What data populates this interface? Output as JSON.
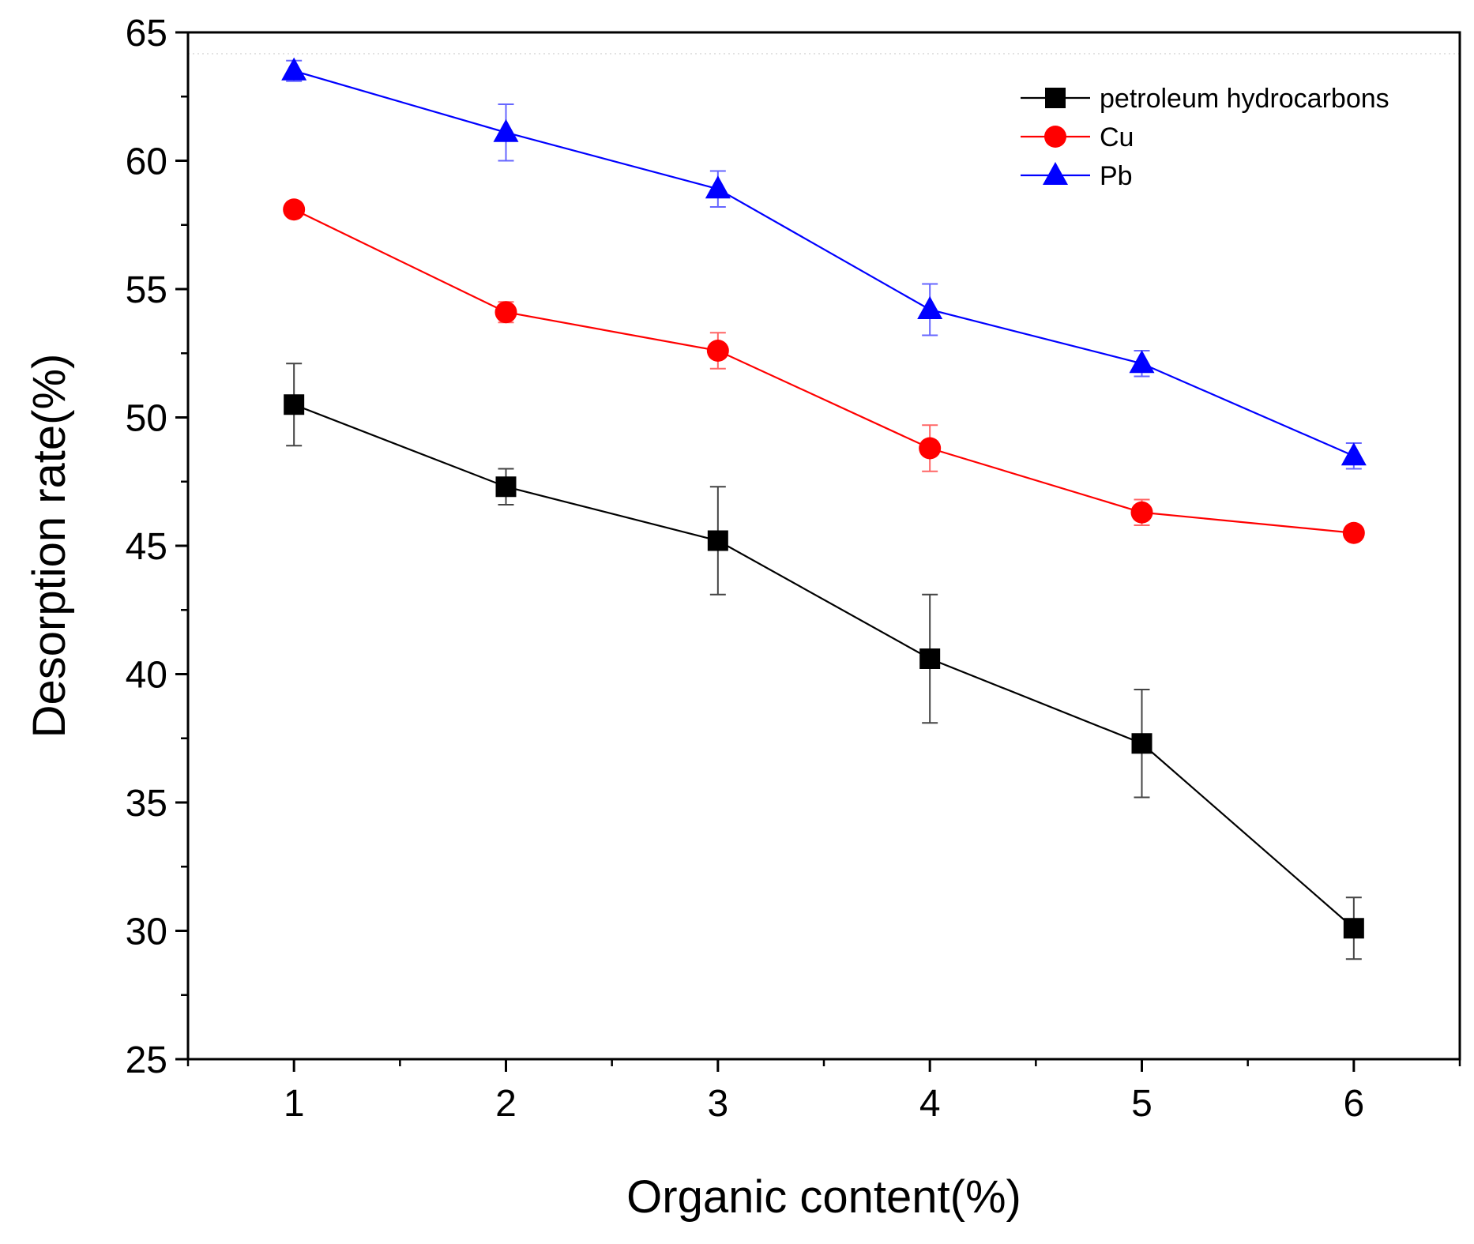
{
  "chart_data": {
    "type": "line",
    "title": "",
    "xlabel": "Organic content(%)",
    "ylabel": "Desorption rate(%)",
    "x": [
      1,
      2,
      3,
      4,
      5,
      6
    ],
    "x_tick_labels": [
      "1",
      "2",
      "3",
      "4",
      "5",
      "6"
    ],
    "xlim": [
      0.5,
      6.5
    ],
    "y_ticks": [
      25,
      30,
      35,
      40,
      45,
      50,
      55,
      60,
      65
    ],
    "y_tick_labels": [
      "25",
      "30",
      "35",
      "40",
      "45",
      "50",
      "55",
      "60",
      "65"
    ],
    "ylim": [
      25,
      65
    ],
    "grid": false,
    "legend_position": "top-right",
    "series": [
      {
        "name": "petroleum hydrocarbons",
        "color": "#000000",
        "marker": "square",
        "values": [
          50.5,
          47.3,
          45.2,
          40.6,
          37.3,
          30.1
        ],
        "errors": [
          1.6,
          0.7,
          2.1,
          2.5,
          2.1,
          1.2
        ]
      },
      {
        "name": "Cu",
        "color": "#ff0000",
        "marker": "circle",
        "values": [
          58.1,
          54.1,
          52.6,
          48.8,
          46.3,
          45.5
        ],
        "errors": [
          0.2,
          0.4,
          0.7,
          0.9,
          0.5,
          0.2
        ]
      },
      {
        "name": "Pb",
        "color": "#0000ff",
        "marker": "triangle",
        "values": [
          63.5,
          61.1,
          58.9,
          54.2,
          52.1,
          48.5
        ],
        "errors": [
          0.4,
          1.1,
          0.7,
          1.0,
          0.5,
          0.5
        ]
      }
    ]
  }
}
